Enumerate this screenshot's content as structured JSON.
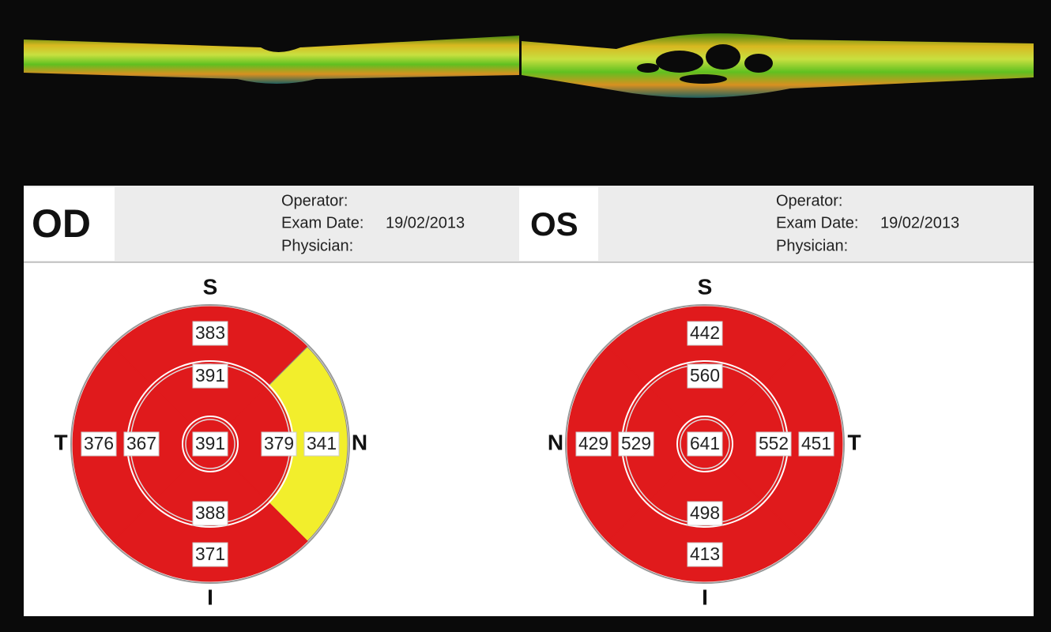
{
  "scan": {
    "eyes": [
      {
        "eye": "OD",
        "operator": "Operator:",
        "exam_date_label": "Exam Date:",
        "exam_date": "19/02/2013",
        "physician": "Physician:",
        "directions": {
          "top": "S",
          "bottom": "I",
          "left": "T",
          "right": "N"
        },
        "grid": {
          "center": {
            "value": 391,
            "color": "#e01a1c"
          },
          "inner": {
            "top": {
              "value": 391,
              "color": "#e01a1c"
            },
            "right": {
              "value": 379,
              "color": "#e01a1c"
            },
            "bottom": {
              "value": 388,
              "color": "#e01a1c"
            },
            "left": {
              "value": 367,
              "color": "#e01a1c"
            }
          },
          "outer": {
            "top": {
              "value": 383,
              "color": "#e01a1c"
            },
            "right": {
              "value": 341,
              "color": "#f2ee2c"
            },
            "bottom": {
              "value": 371,
              "color": "#e01a1c"
            },
            "left": {
              "value": 376,
              "color": "#e01a1c"
            }
          }
        }
      },
      {
        "eye": "OS",
        "operator": "Operator:",
        "exam_date_label": "Exam Date:",
        "exam_date": "19/02/2013",
        "physician": "Physician:",
        "directions": {
          "top": "S",
          "bottom": "I",
          "left": "N",
          "right": "T"
        },
        "grid": {
          "center": {
            "value": 641,
            "color": "#e01a1c"
          },
          "inner": {
            "top": {
              "value": 560,
              "color": "#e01a1c"
            },
            "right": {
              "value": 552,
              "color": "#e01a1c"
            },
            "bottom": {
              "value": 498,
              "color": "#e01a1c"
            },
            "left": {
              "value": 529,
              "color": "#e01a1c"
            }
          },
          "outer": {
            "top": {
              "value": 442,
              "color": "#e01a1c"
            },
            "right": {
              "value": 451,
              "color": "#e01a1c"
            },
            "bottom": {
              "value": 413,
              "color": "#e01a1c"
            },
            "left": {
              "value": 429,
              "color": "#e01a1c"
            }
          }
        }
      }
    ]
  }
}
